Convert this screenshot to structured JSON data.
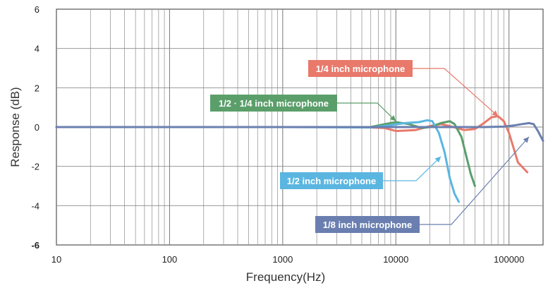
{
  "chart_data": {
    "type": "line",
    "xlabel": "Frequency(Hz)",
    "ylabel": "Response (dB)",
    "xscale": "log",
    "xlim": [
      10,
      200000
    ],
    "ylim": [
      -6,
      6
    ],
    "x_ticks": [
      {
        "value": 10,
        "label": "10"
      },
      {
        "value": 100,
        "label": "100"
      },
      {
        "value": 1000,
        "label": "1000"
      },
      {
        "value": 10000,
        "label": "10000"
      },
      {
        "value": 100000,
        "label": "100000"
      }
    ],
    "y_ticks": [
      {
        "value": 6,
        "label": "6"
      },
      {
        "value": 4,
        "label": "4"
      },
      {
        "value": 2,
        "label": "2"
      },
      {
        "value": 0,
        "label": "0"
      },
      {
        "value": -2,
        "label": "-2"
      },
      {
        "value": -4,
        "label": "-4"
      },
      {
        "value": -6,
        "label": "-6"
      }
    ],
    "grid": true,
    "series": [
      {
        "name": "1/4 inch microphone",
        "color": "#e8796b",
        "points": [
          [
            10,
            0
          ],
          [
            1000,
            0
          ],
          [
            5000,
            0
          ],
          [
            8000,
            -0.05
          ],
          [
            10000,
            -0.2
          ],
          [
            15000,
            -0.15
          ],
          [
            20000,
            0.05
          ],
          [
            25000,
            0.15
          ],
          [
            30000,
            0.05
          ],
          [
            40000,
            -0.15
          ],
          [
            50000,
            -0.1
          ],
          [
            60000,
            0.2
          ],
          [
            70000,
            0.5
          ],
          [
            80000,
            0.55
          ],
          [
            90000,
            0.3
          ],
          [
            100000,
            -0.3
          ],
          [
            120000,
            -1.8
          ],
          [
            145000,
            -2.3
          ]
        ]
      },
      {
        "name": "1/2 · 1/4 inch microphone",
        "color": "#5a9e6a",
        "points": [
          [
            10,
            0
          ],
          [
            1000,
            0
          ],
          [
            6000,
            0
          ],
          [
            8000,
            0.15
          ],
          [
            10000,
            0.25
          ],
          [
            13000,
            0.15
          ],
          [
            17000,
            -0.05
          ],
          [
            20000,
            0
          ],
          [
            25000,
            0.2
          ],
          [
            30000,
            0.3
          ],
          [
            33000,
            0.15
          ],
          [
            38000,
            -0.5
          ],
          [
            42000,
            -1.5
          ],
          [
            46000,
            -2.4
          ],
          [
            50000,
            -3
          ]
        ]
      },
      {
        "name": "1/2 inch microphone",
        "color": "#5ab6e0",
        "points": [
          [
            10,
            0
          ],
          [
            1000,
            0
          ],
          [
            6000,
            -0.02
          ],
          [
            9000,
            0.1
          ],
          [
            12000,
            0.2
          ],
          [
            16000,
            0.25
          ],
          [
            19000,
            0.35
          ],
          [
            21000,
            0.3
          ],
          [
            24000,
            -0.3
          ],
          [
            27000,
            -1.3
          ],
          [
            30000,
            -2.6
          ],
          [
            33000,
            -3.4
          ],
          [
            36000,
            -3.8
          ]
        ]
      },
      {
        "name": "1/8 inch microphone",
        "color": "#6a7fb0",
        "points": [
          [
            10,
            0
          ],
          [
            10000,
            0
          ],
          [
            30000,
            0
          ],
          [
            60000,
            0
          ],
          [
            90000,
            0.02
          ],
          [
            110000,
            0.08
          ],
          [
            130000,
            0.15
          ],
          [
            150000,
            0.2
          ],
          [
            165000,
            0.15
          ],
          [
            180000,
            -0.2
          ],
          [
            200000,
            -0.7
          ]
        ]
      }
    ],
    "annotations": [
      {
        "text": "1/4 inch microphone",
        "series": 0,
        "bg": "#e8796b",
        "arrow_to": [
          80000,
          0.55
        ]
      },
      {
        "text": "1/2 · 1/4 inch microphone",
        "series": 1,
        "bg": "#5a9e6a",
        "arrow_to": [
          10000,
          0.3
        ]
      },
      {
        "text": "1/2 inch microphone",
        "series": 2,
        "bg": "#5ab6e0",
        "arrow_to": [
          25000,
          -1.5
        ]
      },
      {
        "text": "1/8 inch microphone",
        "series": 3,
        "bg": "#6a7fb0",
        "arrow_to": [
          150000,
          -0.5
        ]
      }
    ]
  }
}
